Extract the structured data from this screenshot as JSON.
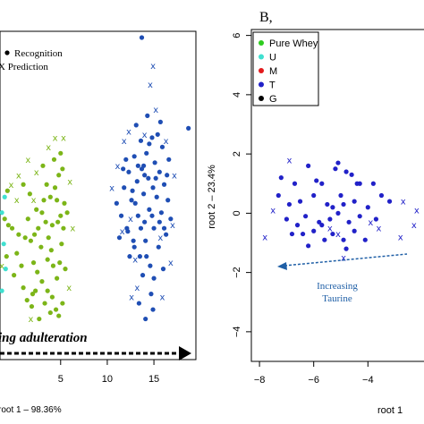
{
  "chart_data": [
    {
      "type": "scatter",
      "panel_label": "",
      "xlabel": "root 1 – 98.36%",
      "ylabel": "",
      "xlim": [
        -1.5,
        19.5
      ],
      "ylim": [
        -4.2,
        6.3
      ],
      "grid": false,
      "x_ticks": [
        5,
        10,
        15
      ],
      "y_ticks": [],
      "legend": {
        "position": "top-left",
        "entries": [
          {
            "label": "Recognition",
            "marker": "dot"
          },
          {
            "label": "X Prediction",
            "marker": "x"
          }
        ]
      },
      "annotation": {
        "text": "ing adulteration",
        "arrow": "right"
      },
      "series": [
        {
          "color": "#7cb518",
          "marker": "dot",
          "points": [
            [
              -1.0,
              0.3
            ],
            [
              -0.8,
              -0.9
            ],
            [
              -0.6,
              0.1
            ],
            [
              -0.2,
              0.0
            ],
            [
              0.0,
              -1.5
            ],
            [
              0.3,
              -0.8
            ],
            [
              0.8,
              -1.2
            ],
            [
              1.0,
              -1.9
            ],
            [
              1.4,
              -2.3
            ],
            [
              1.9,
              -2.5
            ],
            [
              2.3,
              -2.0
            ],
            [
              2.1,
              -1.1
            ],
            [
              1.8,
              -0.4
            ],
            [
              2.6,
              0.0
            ],
            [
              2.4,
              0.6
            ],
            [
              3.0,
              0.5
            ],
            [
              3.4,
              0.2
            ],
            [
              3.7,
              -0.3
            ],
            [
              4.0,
              -0.7
            ],
            [
              4.2,
              -1.2
            ],
            [
              4.6,
              -1.6
            ],
            [
              4.9,
              -1.1
            ],
            [
              5.1,
              -0.5
            ],
            [
              5.3,
              0.0
            ],
            [
              5.0,
              0.4
            ],
            [
              4.6,
              0.9
            ],
            [
              4.4,
              1.3
            ],
            [
              4.8,
              1.7
            ],
            [
              5.2,
              1.9
            ],
            [
              3.9,
              1.0
            ],
            [
              3.5,
              1.4
            ],
            [
              3.2,
              0.9
            ],
            [
              2.9,
              -0.6
            ],
            [
              2.5,
              -1.4
            ],
            [
              3.0,
              -1.7
            ],
            [
              3.6,
              -2.0
            ],
            [
              4.1,
              -2.2
            ],
            [
              4.5,
              -2.6
            ],
            [
              5.2,
              -2.4
            ],
            [
              4.8,
              -2.8
            ],
            [
              3.9,
              -2.7
            ],
            [
              3.3,
              -2.4
            ],
            [
              2.7,
              -2.9
            ],
            [
              5.5,
              -1.3
            ],
            [
              5.4,
              0.8
            ],
            [
              4.1,
              0.1
            ],
            [
              3.6,
              -1.0
            ],
            [
              2.2,
              -0.2
            ],
            [
              1.5,
              0.3
            ],
            [
              1.2,
              -0.3
            ],
            [
              0.5,
              -0.2
            ],
            [
              4.3,
              2.2
            ],
            [
              5.0,
              2.4
            ],
            [
              1.0,
              1.4
            ],
            [
              -0.7,
              1.2
            ],
            [
              1.7,
              1.1
            ],
            [
              3.1,
              2.0
            ],
            [
              4.7,
              0.2
            ],
            [
              5.7,
              0.5
            ],
            [
              2.0,
              -2.1
            ]
          ]
        },
        {
          "color": "#7cb518",
          "marker": "x",
          "points": [
            [
              -0.3,
              1.4
            ],
            [
              0.5,
              1.7
            ],
            [
              1.5,
              2.2
            ],
            [
              2.4,
              1.8
            ],
            [
              5.3,
              2.9
            ],
            [
              6.0,
              1.5
            ],
            [
              6.3,
              0.0
            ],
            [
              5.9,
              -1.9
            ],
            [
              -1.3,
              -1.2
            ],
            [
              2.1,
              0.9
            ],
            [
              0.3,
              0.9
            ],
            [
              4.4,
              2.9
            ],
            [
              3.7,
              2.6
            ],
            [
              1.8,
              -2.9
            ]
          ]
        },
        {
          "color": "#40e0d0",
          "marker": "dot",
          "points": [
            [
              -1.3,
              0.5
            ],
            [
              -1.1,
              -0.5
            ],
            [
              -0.9,
              -1.3
            ],
            [
              -1.3,
              -2.0
            ],
            [
              -1.0,
              1.0
            ]
          ]
        },
        {
          "color": "#1f4eb4",
          "marker": "dot",
          "points": [
            [
              11.0,
              0.8
            ],
            [
              11.5,
              0.4
            ],
            [
              11.8,
              1.3
            ],
            [
              12.1,
              0.0
            ],
            [
              12.3,
              1.8
            ],
            [
              12.6,
              0.9
            ],
            [
              12.8,
              -0.4
            ],
            [
              12.9,
              2.3
            ],
            [
              13.2,
              1.5
            ],
            [
              13.3,
              0.4
            ],
            [
              13.5,
              -0.9
            ],
            [
              13.6,
              2.8
            ],
            [
              13.7,
              1.9
            ],
            [
              13.9,
              1.1
            ],
            [
              14.0,
              0.2
            ],
            [
              14.1,
              -0.4
            ],
            [
              14.2,
              2.4
            ],
            [
              14.4,
              1.6
            ],
            [
              14.5,
              0.6
            ],
            [
              14.6,
              -1.2
            ],
            [
              14.8,
              2.9
            ],
            [
              14.9,
              1.3
            ],
            [
              15.0,
              0.0
            ],
            [
              15.1,
              2.1
            ],
            [
              15.3,
              1.0
            ],
            [
              15.5,
              -0.6
            ],
            [
              15.6,
              1.8
            ],
            [
              15.8,
              0.5
            ],
            [
              15.9,
              2.6
            ],
            [
              16.1,
              1.4
            ],
            [
              16.3,
              -0.2
            ],
            [
              16.5,
              0.9
            ],
            [
              16.6,
              2.2
            ],
            [
              13.1,
              3.3
            ],
            [
              14.3,
              3.6
            ],
            [
              15.4,
              3.0
            ],
            [
              12.4,
              -0.9
            ],
            [
              13.8,
              -1.5
            ],
            [
              14.7,
              -2.1
            ],
            [
              13.4,
              -2.4
            ],
            [
              14.9,
              -2.6
            ],
            [
              16.0,
              -1.3
            ],
            [
              11.3,
              -0.3
            ],
            [
              12.0,
              2.2
            ],
            [
              13.0,
              0.8
            ],
            [
              14.0,
              1.7
            ],
            [
              15.2,
              1.6
            ],
            [
              15.7,
              3.4
            ],
            [
              16.8,
              0.3
            ],
            [
              11.7,
              1.9
            ],
            [
              13.6,
              0.0
            ],
            [
              14.5,
              2.7
            ],
            [
              15.0,
              -1.6
            ],
            [
              12.7,
              1.2
            ],
            [
              13.9,
              2.0
            ],
            [
              14.2,
              -0.9
            ],
            [
              15.6,
              0.2
            ],
            [
              16.4,
              1.7
            ],
            [
              12.2,
              -0.1
            ],
            [
              14.8,
              0.4
            ],
            [
              13.3,
              2.0
            ],
            [
              16.1,
              0.0
            ],
            [
              18.7,
              3.2
            ],
            [
              13.7,
              6.1
            ],
            [
              14.1,
              -2.9
            ],
            [
              12.9,
              -0.6
            ]
          ]
        },
        {
          "color": "#1f4eb4",
          "marker": "x",
          "points": [
            [
              10.5,
              1.3
            ],
            [
              11.1,
              2.0
            ],
            [
              11.6,
              -0.1
            ],
            [
              12.3,
              3.1
            ],
            [
              14.0,
              3.0
            ],
            [
              15.2,
              3.8
            ],
            [
              16.3,
              2.8
            ],
            [
              17.2,
              1.7
            ],
            [
              17.0,
              0.1
            ],
            [
              16.8,
              -1.1
            ],
            [
              13.2,
              -1.9
            ],
            [
              14.6,
              4.6
            ],
            [
              11.8,
              2.8
            ],
            [
              15.9,
              -2.2
            ],
            [
              13.0,
              -1.0
            ],
            [
              14.9,
              5.2
            ],
            [
              12.5,
              0.3
            ],
            [
              15.7,
              -0.3
            ],
            [
              12.6,
              -2.2
            ]
          ]
        }
      ]
    },
    {
      "type": "scatter",
      "panel_label": "B,",
      "xlabel": "root 1",
      "ylabel": "root 2 – 23.4%",
      "xlim": [
        -8.3,
        -1.7
      ],
      "ylim": [
        -5.0,
        6.2
      ],
      "grid": false,
      "x_ticks": [
        -8,
        -6,
        -4
      ],
      "y_ticks": [
        6,
        4,
        2,
        0,
        -2,
        -4
      ],
      "legend": {
        "position": "top-left",
        "entries": [
          {
            "label": "Pure Whey",
            "color": "#2ecc1e"
          },
          {
            "label": "U",
            "color": "#40e0d0"
          },
          {
            "label": "M",
            "color": "#e31a1c"
          },
          {
            "label": "T",
            "color": "#2121c8"
          },
          {
            "label": "G",
            "color": "#000000"
          }
        ]
      },
      "annotation": {
        "text_lines": [
          "Increasing",
          "Taurine"
        ],
        "arrow": "left",
        "color": "#1f5fa6"
      },
      "series": [
        {
          "color": "#2121c8",
          "marker": "dot",
          "points": [
            [
              -6.2,
              1.6
            ],
            [
              -5.7,
              1.0
            ],
            [
              -5.2,
              1.5
            ],
            [
              -4.8,
              1.4
            ],
            [
              -4.3,
              1.0
            ],
            [
              -3.8,
              1.0
            ],
            [
              -7.3,
              0.6
            ],
            [
              -6.9,
              0.3
            ],
            [
              -6.5,
              0.4
            ],
            [
              -6.0,
              0.6
            ],
            [
              -5.5,
              0.3
            ],
            [
              -5.0,
              0.6
            ],
            [
              -4.5,
              0.4
            ],
            [
              -4.0,
              0.2
            ],
            [
              -3.5,
              0.6
            ],
            [
              -7.0,
              -0.2
            ],
            [
              -6.6,
              -0.4
            ],
            [
              -6.3,
              -0.1
            ],
            [
              -5.8,
              -0.3
            ],
            [
              -5.4,
              -0.2
            ],
            [
              -5.1,
              0.0
            ],
            [
              -4.7,
              -0.3
            ],
            [
              -4.3,
              -0.1
            ],
            [
              -3.7,
              -0.2
            ],
            [
              -6.4,
              -0.7
            ],
            [
              -6.0,
              -0.6
            ],
            [
              -5.3,
              -0.7
            ],
            [
              -4.9,
              -0.9
            ],
            [
              -4.5,
              -0.6
            ],
            [
              -6.8,
              -0.7
            ],
            [
              -5.6,
              -0.9
            ],
            [
              -4.1,
              -0.9
            ],
            [
              -6.2,
              -1.1
            ],
            [
              -4.8,
              -1.2
            ],
            [
              -5.9,
              1.1
            ],
            [
              -4.6,
              1.3
            ],
            [
              -3.2,
              0.4
            ],
            [
              -5.3,
              0.2
            ],
            [
              -4.4,
              1.0
            ],
            [
              -7.2,
              1.2
            ],
            [
              -5.7,
              -0.4
            ],
            [
              -6.7,
              1.0
            ],
            [
              -4.9,
              0.3
            ],
            [
              -5.1,
              1.7
            ]
          ]
        },
        {
          "color": "#2121c8",
          "marker": "x",
          "points": [
            [
              -6.9,
              1.8
            ],
            [
              -7.5,
              0.1
            ],
            [
              -7.8,
              -0.8
            ],
            [
              -5.1,
              -0.7
            ],
            [
              -4.9,
              -1.5
            ],
            [
              -3.9,
              -0.3
            ],
            [
              -2.7,
              0.4
            ],
            [
              -2.2,
              0.1
            ],
            [
              -2.8,
              -0.8
            ],
            [
              -2.3,
              -0.4
            ],
            [
              -3.6,
              -0.5
            ],
            [
              -5.4,
              -0.5
            ]
          ]
        }
      ]
    }
  ]
}
